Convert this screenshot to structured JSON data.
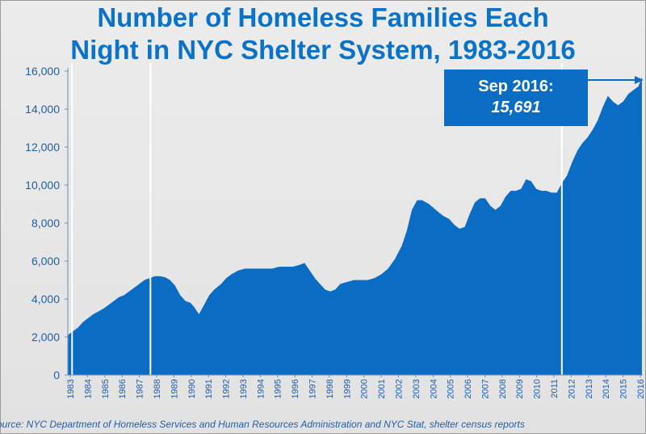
{
  "chart_data": {
    "type": "area",
    "title": [
      "Number of Homeless Families Each",
      "Night in NYC Shelter System, 1983-2016"
    ],
    "xlabel": "",
    "ylabel": "",
    "ylim": [
      0,
      16000
    ],
    "yticks": [
      0,
      2000,
      4000,
      6000,
      8000,
      10000,
      12000,
      14000,
      16000
    ],
    "ytick_labels": [
      "0",
      "2,000",
      "4,000",
      "6,000",
      "8,000",
      "10,000",
      "12,000",
      "14,000",
      "16,000"
    ],
    "x_tick_labels": [
      "1983",
      "1984",
      "1985",
      "1986",
      "1987",
      "1988",
      "1989",
      "1990",
      "1991",
      "1992",
      "1993",
      "1994",
      "1995",
      "1996",
      "1997",
      "1998",
      "1999",
      "2000",
      "2001",
      "2002",
      "2003",
      "2004",
      "2005",
      "2006",
      "2007",
      "2008",
      "2009",
      "2010",
      "2011",
      "2012",
      "2013",
      "2014",
      "2015",
      "2016"
    ],
    "x": [
      1983.0,
      1983.3,
      1983.6,
      1983.9,
      1984.2,
      1984.5,
      1984.8,
      1985.1,
      1985.4,
      1985.7,
      1986.0,
      1986.3,
      1986.6,
      1986.9,
      1987.2,
      1987.5,
      1987.8,
      1988.1,
      1988.4,
      1988.7,
      1989.0,
      1989.3,
      1989.6,
      1989.9,
      1990.2,
      1990.4,
      1990.7,
      1991.0,
      1991.3,
      1991.6,
      1992.0,
      1992.3,
      1992.6,
      1993.0,
      1993.4,
      1993.8,
      1994.2,
      1994.6,
      1995.0,
      1995.4,
      1995.8,
      1996.2,
      1996.6,
      1996.9,
      1997.2,
      1997.5,
      1997.8,
      1998.1,
      1998.4,
      1998.7,
      1999.0,
      1999.4,
      1999.8,
      2000.2,
      2000.6,
      2001.0,
      2001.4,
      2001.8,
      2002.2,
      2002.6,
      2002.9,
      2003.2,
      2003.5,
      2003.8,
      2004.2,
      2004.6,
      2005.0,
      2005.4,
      2005.7,
      2006.0,
      2006.3,
      2006.6,
      2006.9,
      2007.2,
      2007.5,
      2007.8,
      2008.1,
      2008.4,
      2008.7,
      2009.0,
      2009.3,
      2009.6,
      2009.9,
      2010.2,
      2010.5,
      2010.8,
      2011.1,
      2011.4,
      2011.7,
      2012.0,
      2012.3,
      2012.6,
      2012.9,
      2013.2,
      2013.5,
      2013.8,
      2014.1,
      2014.4,
      2014.7,
      2015.0,
      2015.3,
      2015.6,
      2015.9,
      2016.2,
      2016.5,
      2016.7
    ],
    "values": [
      2100,
      2300,
      2500,
      2800,
      3000,
      3200,
      3350,
      3500,
      3700,
      3900,
      4100,
      4200,
      4400,
      4600,
      4800,
      5000,
      5100,
      5200,
      5200,
      5150,
      5000,
      4700,
      4200,
      3900,
      3800,
      3600,
      3200,
      3700,
      4200,
      4500,
      4800,
      5100,
      5300,
      5500,
      5600,
      5600,
      5600,
      5600,
      5600,
      5700,
      5700,
      5700,
      5800,
      5900,
      5500,
      5100,
      4800,
      4500,
      4400,
      4500,
      4800,
      4900,
      5000,
      5000,
      5000,
      5100,
      5300,
      5600,
      6100,
      6800,
      7600,
      8700,
      9200,
      9200,
      9000,
      8700,
      8400,
      8200,
      7900,
      7700,
      7800,
      8500,
      9100,
      9300,
      9300,
      8900,
      8700,
      8900,
      9400,
      9700,
      9700,
      9800,
      10300,
      10200,
      9800,
      9700,
      9700,
      9600,
      9600,
      10100,
      10500,
      11200,
      11800,
      12200,
      12500,
      12900,
      13400,
      14100,
      14700,
      14400,
      14200,
      14400,
      14800,
      15000,
      15200,
      15691
    ],
    "gaps_x": [
      1983.25,
      1987.85,
      2012.0
    ],
    "annotation": {
      "label": "Sep 2016:",
      "value": "15,691",
      "arrow_to": [
        2016.7,
        15691
      ]
    },
    "color": "#0a6cc2",
    "grid": false,
    "legend": "none"
  },
  "source": "ource:  NYC Department of Homeless Services and Human Resources Administration and NYC Stat,  shelter census reports"
}
